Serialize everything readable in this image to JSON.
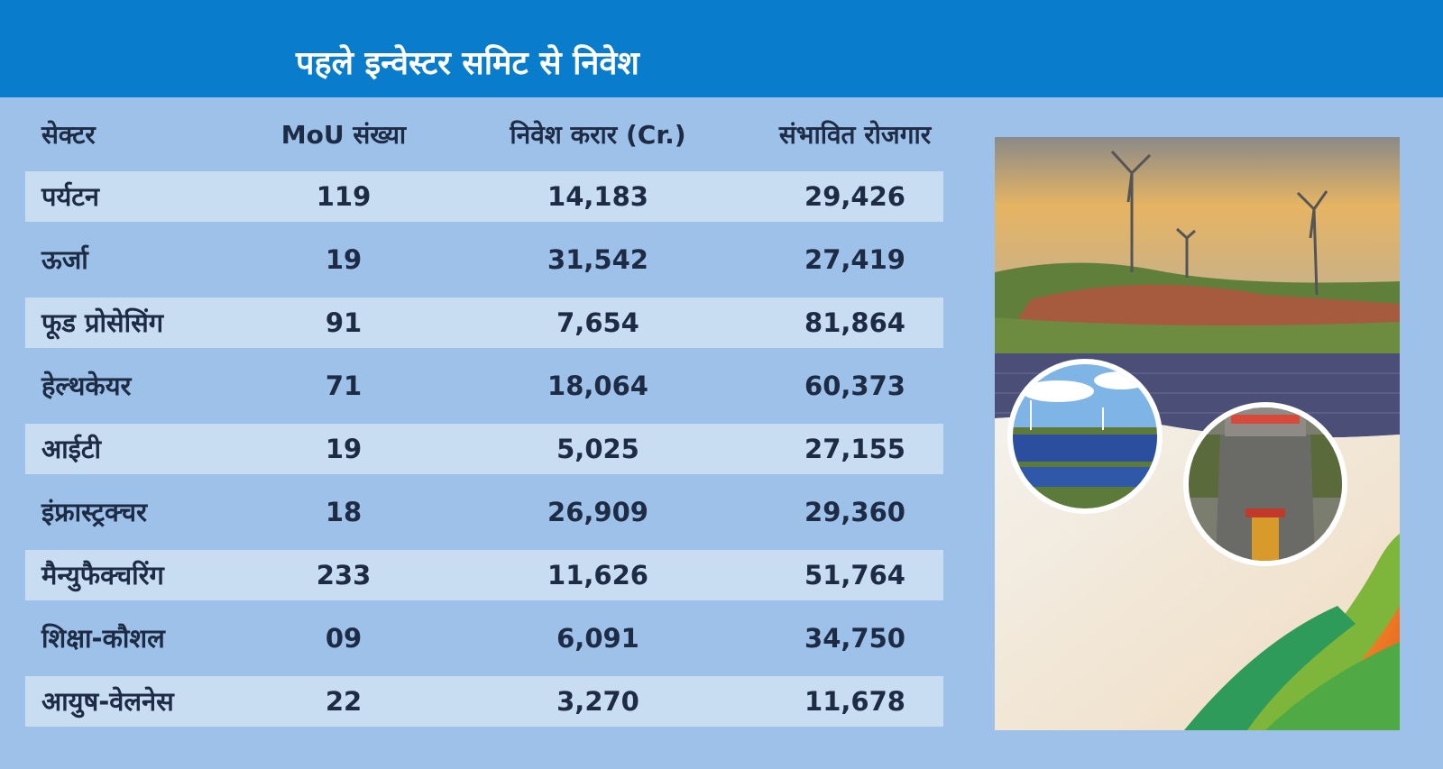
{
  "title": "पहले इन्वेस्टर समिट से निवेश",
  "columns": [
    "सेक्टर",
    "MoU संख्या",
    "निवेश करार (Cr.)",
    "संभावित रोजगार"
  ],
  "rows": [
    {
      "sector": "पर्यटन",
      "mou": "119",
      "investment": "14,183",
      "employment": "29,426"
    },
    {
      "sector": "ऊर्जा",
      "mou": "19",
      "investment": "31,542",
      "employment": "27,419"
    },
    {
      "sector": "फूड प्रोसेसिंग",
      "mou": "91",
      "investment": "7,654",
      "employment": "81,864"
    },
    {
      "sector": "हेल्थकेयर",
      "mou": "71",
      "investment": "18,064",
      "employment": "60,373"
    },
    {
      "sector": "आईटी",
      "mou": "19",
      "investment": "5,025",
      "employment": "27,155"
    },
    {
      "sector": "इंफ्रास्ट्रक्चर",
      "mou": "18",
      "investment": "26,909",
      "employment": "29,360"
    },
    {
      "sector": "मैन्युफैक्चरिंग",
      "mou": "233",
      "investment": "11,626",
      "employment": "51,764"
    },
    {
      "sector": "शिक्षा-कौशल",
      "mou": "09",
      "investment": "6,091",
      "employment": "34,750"
    },
    {
      "sector": "आयुष-वेलनेस",
      "mou": "22",
      "investment": "3,270",
      "employment": "11,678"
    }
  ],
  "colors": {
    "header_bg": "#0a7ccc",
    "page_bg": "#9dc1e8",
    "band_bg": "#c8dcf2",
    "text": "#1e2b44"
  }
}
